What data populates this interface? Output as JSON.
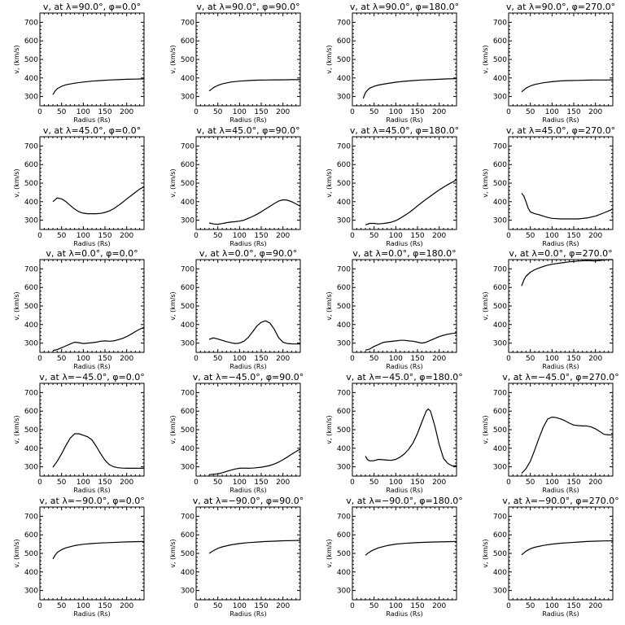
{
  "chart_data": [
    {
      "type": "line",
      "title": "v, at λ=90.0°, φ=0.0°",
      "xlabel": "Radius (Rs)",
      "ylabel": "v, (km/s)",
      "xlim": [
        0,
        240
      ],
      "ylim": [
        250,
        750
      ],
      "xticks": [
        0,
        50,
        100,
        150,
        200
      ],
      "yticks": [
        300,
        400,
        500,
        600,
        700
      ],
      "x": [
        30,
        35,
        40,
        50,
        60,
        80,
        100,
        120,
        140,
        160,
        180,
        200,
        220,
        240
      ],
      "y": [
        310,
        330,
        342,
        355,
        363,
        372,
        378,
        383,
        386,
        389,
        391,
        393,
        394,
        395
      ]
    },
    {
      "type": "line",
      "title": "v, at λ=90.0°, φ=90.0°",
      "xlabel": "Radius (Rs)",
      "ylabel": "v, (km/s)",
      "xlim": [
        0,
        240
      ],
      "ylim": [
        250,
        750
      ],
      "xticks": [
        0,
        50,
        100,
        150,
        200
      ],
      "yticks": [
        300,
        400,
        500,
        600,
        700
      ],
      "x": [
        30,
        40,
        50,
        60,
        80,
        100,
        120,
        140,
        160,
        180,
        200,
        220,
        240
      ],
      "y": [
        330,
        348,
        360,
        368,
        378,
        383,
        386,
        388,
        389,
        390,
        390,
        391,
        391
      ]
    },
    {
      "type": "line",
      "title": "v, at λ=90.0°, φ=180.0°",
      "xlabel": "Radius (Rs)",
      "ylabel": "v, (km/s)",
      "xlim": [
        0,
        240
      ],
      "ylim": [
        250,
        750
      ],
      "xticks": [
        0,
        50,
        100,
        150,
        200
      ],
      "yticks": [
        300,
        400,
        500,
        600,
        700
      ],
      "x": [
        25,
        30,
        35,
        40,
        50,
        60,
        80,
        100,
        120,
        140,
        160,
        180,
        200,
        220,
        240
      ],
      "y": [
        290,
        320,
        335,
        345,
        355,
        362,
        370,
        377,
        382,
        386,
        389,
        391,
        393,
        395,
        396
      ]
    },
    {
      "type": "line",
      "title": "v, at λ=90.0°, φ=270.0°",
      "xlabel": "Radius (Rs)",
      "ylabel": "v, (km/s)",
      "xlim": [
        0,
        240
      ],
      "ylim": [
        250,
        750
      ],
      "xticks": [
        0,
        50,
        100,
        150,
        200
      ],
      "yticks": [
        300,
        400,
        500,
        600,
        700
      ],
      "x": [
        30,
        40,
        50,
        60,
        80,
        100,
        120,
        140,
        160,
        180,
        200,
        220,
        240
      ],
      "y": [
        325,
        345,
        357,
        365,
        374,
        380,
        384,
        386,
        387,
        388,
        389,
        389,
        390
      ]
    },
    {
      "type": "line",
      "title": "v, at λ=45.0°, φ=0.0°",
      "xlabel": "Radius (Rs)",
      "ylabel": "v, (km/s)",
      "xlim": [
        0,
        240
      ],
      "ylim": [
        250,
        750
      ],
      "xticks": [
        0,
        50,
        100,
        150,
        200
      ],
      "yticks": [
        300,
        400,
        500,
        600,
        700
      ],
      "x": [
        30,
        40,
        50,
        60,
        70,
        80,
        90,
        100,
        110,
        120,
        130,
        140,
        150,
        160,
        170,
        180,
        190,
        200,
        210,
        220,
        230,
        240
      ],
      "y": [
        400,
        420,
        415,
        400,
        380,
        360,
        345,
        338,
        335,
        335,
        335,
        337,
        342,
        350,
        362,
        378,
        395,
        415,
        432,
        450,
        468,
        480
      ]
    },
    {
      "type": "line",
      "title": "v, at λ=45.0°, φ=90.0°",
      "xlabel": "Radius (Rs)",
      "ylabel": "v, (km/s)",
      "xlim": [
        0,
        240
      ],
      "ylim": [
        250,
        750
      ],
      "xticks": [
        0,
        50,
        100,
        150,
        200
      ],
      "yticks": [
        300,
        400,
        500,
        600,
        700
      ],
      "x": [
        30,
        40,
        50,
        60,
        70,
        80,
        90,
        100,
        110,
        120,
        130,
        140,
        150,
        160,
        170,
        180,
        190,
        200,
        210,
        220,
        230,
        240
      ],
      "y": [
        285,
        280,
        278,
        282,
        287,
        290,
        292,
        295,
        300,
        310,
        320,
        332,
        345,
        360,
        375,
        390,
        403,
        410,
        408,
        400,
        388,
        375
      ]
    },
    {
      "type": "line",
      "title": "v, at λ=45.0°, φ=180.0°",
      "xlabel": "Radius (Rs)",
      "ylabel": "v, (km/s)",
      "xlim": [
        0,
        240
      ],
      "ylim": [
        250,
        750
      ],
      "xticks": [
        0,
        50,
        100,
        150,
        200
      ],
      "yticks": [
        300,
        400,
        500,
        600,
        700
      ],
      "x": [
        30,
        40,
        50,
        60,
        70,
        80,
        90,
        100,
        110,
        120,
        130,
        140,
        150,
        160,
        170,
        180,
        190,
        200,
        210,
        220,
        230,
        240
      ],
      "y": [
        275,
        283,
        283,
        280,
        282,
        285,
        290,
        298,
        310,
        325,
        340,
        358,
        377,
        395,
        413,
        430,
        447,
        463,
        478,
        492,
        505,
        518
      ]
    },
    {
      "type": "line",
      "title": "v, at λ=45.0°, φ=270.0°",
      "xlabel": "Radius (Rs)",
      "ylabel": "v, (km/s)",
      "xlim": [
        0,
        240
      ],
      "ylim": [
        250,
        750
      ],
      "xticks": [
        0,
        50,
        100,
        150,
        200
      ],
      "yticks": [
        300,
        400,
        500,
        600,
        700
      ],
      "x": [
        30,
        35,
        40,
        45,
        50,
        60,
        70,
        80,
        90,
        100,
        120,
        140,
        160,
        180,
        200,
        220,
        240
      ],
      "y": [
        445,
        430,
        400,
        365,
        345,
        335,
        330,
        322,
        315,
        310,
        307,
        307,
        307,
        312,
        322,
        340,
        360
      ]
    },
    {
      "type": "line",
      "title": "v, at λ=0.0°, φ=0.0°",
      "xlabel": "Radius (Rs)",
      "ylabel": "v, (km/s)",
      "xlim": [
        0,
        240
      ],
      "ylim": [
        250,
        750
      ],
      "xticks": [
        0,
        50,
        100,
        150,
        200
      ],
      "yticks": [
        300,
        400,
        500,
        600,
        700
      ],
      "x": [
        30,
        40,
        50,
        60,
        70,
        80,
        90,
        100,
        110,
        120,
        130,
        140,
        150,
        160,
        170,
        180,
        190,
        200,
        210,
        220,
        230,
        240
      ],
      "y": [
        260,
        265,
        275,
        285,
        295,
        305,
        302,
        298,
        300,
        302,
        305,
        310,
        312,
        310,
        312,
        318,
        325,
        335,
        348,
        362,
        375,
        385
      ]
    },
    {
      "type": "line",
      "title": "v, at λ=0.0°, φ=90.0°",
      "xlabel": "Radius (Rs)",
      "ylabel": "v, (km/s)",
      "xlim": [
        0,
        240
      ],
      "ylim": [
        250,
        750
      ],
      "xticks": [
        0,
        50,
        100,
        150,
        200
      ],
      "yticks": [
        300,
        400,
        500,
        600,
        700
      ],
      "x": [
        30,
        40,
        50,
        60,
        70,
        80,
        90,
        100,
        110,
        120,
        130,
        140,
        150,
        160,
        170,
        180,
        190,
        200,
        210,
        220,
        230,
        240
      ],
      "y": [
        320,
        328,
        322,
        315,
        308,
        302,
        298,
        300,
        310,
        330,
        360,
        392,
        412,
        420,
        408,
        375,
        330,
        305,
        298,
        296,
        295,
        295
      ]
    },
    {
      "type": "line",
      "title": "v, at λ=0.0°, φ=180.0°",
      "xlabel": "Radius (Rs)",
      "ylabel": "v, (km/s)",
      "xlim": [
        0,
        240
      ],
      "ylim": [
        250,
        750
      ],
      "xticks": [
        0,
        50,
        100,
        150,
        200
      ],
      "yticks": [
        300,
        400,
        500,
        600,
        700
      ],
      "x": [
        30,
        40,
        50,
        60,
        70,
        80,
        90,
        100,
        110,
        120,
        130,
        140,
        150,
        160,
        170,
        180,
        190,
        200,
        210,
        220,
        230,
        240
      ],
      "y": [
        262,
        268,
        282,
        292,
        303,
        307,
        309,
        312,
        315,
        315,
        312,
        310,
        305,
        300,
        305,
        315,
        325,
        335,
        342,
        348,
        352,
        355
      ]
    },
    {
      "type": "line",
      "title": "v, at λ=0.0°, φ=270.0°",
      "xlabel": "Radius (Rs)",
      "ylabel": "v, (km/s)",
      "xlim": [
        0,
        240
      ],
      "ylim": [
        250,
        750
      ],
      "xticks": [
        0,
        50,
        100,
        150,
        200
      ],
      "yticks": [
        300,
        400,
        500,
        600,
        700
      ],
      "x": [
        30,
        35,
        40,
        50,
        60,
        70,
        80,
        90,
        100,
        120,
        140,
        160,
        180,
        200,
        220,
        230,
        240
      ],
      "y": [
        608,
        640,
        660,
        682,
        695,
        705,
        713,
        720,
        725,
        732,
        738,
        742,
        745,
        743,
        748,
        750,
        752
      ]
    },
    {
      "type": "line",
      "title": "v, at λ=−45.0°, φ=0.0°",
      "xlabel": "Radius (Rs)",
      "ylabel": "v, (km/s)",
      "xlim": [
        0,
        240
      ],
      "ylim": [
        250,
        750
      ],
      "xticks": [
        0,
        50,
        100,
        150,
        200
      ],
      "yticks": [
        300,
        400,
        500,
        600,
        700
      ],
      "x": [
        30,
        40,
        50,
        60,
        70,
        80,
        90,
        100,
        110,
        120,
        130,
        140,
        150,
        160,
        170,
        180,
        190,
        200,
        210,
        220,
        230,
        240
      ],
      "y": [
        298,
        330,
        370,
        415,
        455,
        478,
        478,
        470,
        462,
        445,
        410,
        370,
        335,
        312,
        300,
        295,
        293,
        292,
        292,
        292,
        292,
        292
      ]
    },
    {
      "type": "line",
      "title": "v, at λ=−45.0°, φ=90.0°",
      "xlabel": "Radius (Rs)",
      "ylabel": "v, (km/s)",
      "xlim": [
        0,
        240
      ],
      "ylim": [
        250,
        750
      ],
      "xticks": [
        0,
        50,
        100,
        150,
        200
      ],
      "yticks": [
        300,
        400,
        500,
        600,
        700
      ],
      "x": [
        30,
        40,
        50,
        60,
        70,
        80,
        90,
        100,
        110,
        120,
        130,
        140,
        150,
        160,
        170,
        180,
        190,
        200,
        210,
        220,
        230,
        240
      ],
      "y": [
        258,
        260,
        262,
        268,
        275,
        282,
        288,
        292,
        293,
        292,
        293,
        295,
        298,
        302,
        307,
        315,
        325,
        338,
        352,
        368,
        382,
        395
      ]
    },
    {
      "type": "line",
      "title": "v, at λ=−45.0°, φ=180.0°",
      "xlabel": "Radius (Rs)",
      "ylabel": "v, (km/s)",
      "xlim": [
        0,
        240
      ],
      "ylim": [
        250,
        750
      ],
      "xticks": [
        0,
        50,
        100,
        150,
        200
      ],
      "yticks": [
        300,
        400,
        500,
        600,
        700
      ],
      "x": [
        30,
        35,
        40,
        50,
        60,
        70,
        80,
        90,
        100,
        110,
        120,
        130,
        140,
        150,
        160,
        170,
        175,
        180,
        190,
        200,
        210,
        220,
        230,
        240
      ],
      "y": [
        358,
        338,
        332,
        333,
        340,
        338,
        336,
        335,
        340,
        352,
        370,
        395,
        430,
        480,
        540,
        600,
        612,
        600,
        520,
        420,
        345,
        318,
        305,
        305
      ]
    },
    {
      "type": "line",
      "title": "v, at λ=−45.0°, φ=270.0°",
      "xlabel": "Radius (Rs)",
      "ylabel": "v, (km/s)",
      "xlim": [
        0,
        240
      ],
      "ylim": [
        250,
        750
      ],
      "xticks": [
        0,
        50,
        100,
        150,
        200
      ],
      "yticks": [
        300,
        400,
        500,
        600,
        700
      ],
      "x": [
        30,
        40,
        50,
        60,
        70,
        80,
        90,
        100,
        110,
        120,
        130,
        140,
        150,
        160,
        170,
        180,
        190,
        200,
        210,
        220,
        230,
        240
      ],
      "y": [
        265,
        290,
        330,
        390,
        455,
        515,
        558,
        568,
        565,
        558,
        548,
        535,
        525,
        522,
        520,
        520,
        515,
        505,
        490,
        475,
        472,
        472
      ]
    },
    {
      "type": "line",
      "title": "v, at λ=−90.0°, φ=0.0°",
      "xlabel": "Radius (Rs)",
      "ylabel": "v, (km/s)",
      "xlim": [
        0,
        240
      ],
      "ylim": [
        250,
        750
      ],
      "xticks": [
        0,
        50,
        100,
        150,
        200
      ],
      "yticks": [
        300,
        400,
        500,
        600,
        700
      ],
      "x": [
        30,
        35,
        40,
        50,
        60,
        80,
        100,
        120,
        140,
        160,
        180,
        200,
        220,
        240
      ],
      "y": [
        470,
        490,
        505,
        520,
        530,
        542,
        549,
        553,
        556,
        558,
        560,
        562,
        563,
        564
      ]
    },
    {
      "type": "line",
      "title": "v, at λ=−90.0°, φ=90.0°",
      "xlabel": "Radius (Rs)",
      "ylabel": "v, (km/s)",
      "xlim": [
        0,
        240
      ],
      "ylim": [
        250,
        750
      ],
      "xticks": [
        0,
        50,
        100,
        150,
        200
      ],
      "yticks": [
        300,
        400,
        500,
        600,
        700
      ],
      "x": [
        30,
        40,
        50,
        60,
        80,
        100,
        120,
        140,
        160,
        180,
        200,
        220,
        240
      ],
      "y": [
        500,
        515,
        527,
        535,
        546,
        553,
        558,
        561,
        564,
        566,
        568,
        569,
        570
      ]
    },
    {
      "type": "line",
      "title": "v, at λ=−90.0°, φ=180.0°",
      "xlabel": "Radius (Rs)",
      "ylabel": "v, (km/s)",
      "xlim": [
        0,
        240
      ],
      "ylim": [
        250,
        750
      ],
      "xticks": [
        0,
        50,
        100,
        150,
        200
      ],
      "yticks": [
        300,
        400,
        500,
        600,
        700
      ],
      "x": [
        30,
        40,
        50,
        60,
        80,
        100,
        120,
        140,
        160,
        180,
        200,
        220,
        240
      ],
      "y": [
        490,
        508,
        520,
        530,
        542,
        550,
        554,
        557,
        559,
        561,
        562,
        563,
        564
      ]
    },
    {
      "type": "line",
      "title": "v, at λ=−90.0°, φ=270.0°",
      "xlabel": "Radius (Rs)",
      "ylabel": "v, (km/s)",
      "xlim": [
        0,
        240
      ],
      "ylim": [
        250,
        750
      ],
      "xticks": [
        0,
        50,
        100,
        150,
        200
      ],
      "yticks": [
        300,
        400,
        500,
        600,
        700
      ],
      "x": [
        30,
        40,
        50,
        60,
        80,
        100,
        120,
        140,
        160,
        180,
        200,
        220,
        240
      ],
      "y": [
        492,
        512,
        525,
        533,
        543,
        550,
        555,
        558,
        561,
        564,
        566,
        567,
        568
      ]
    }
  ]
}
